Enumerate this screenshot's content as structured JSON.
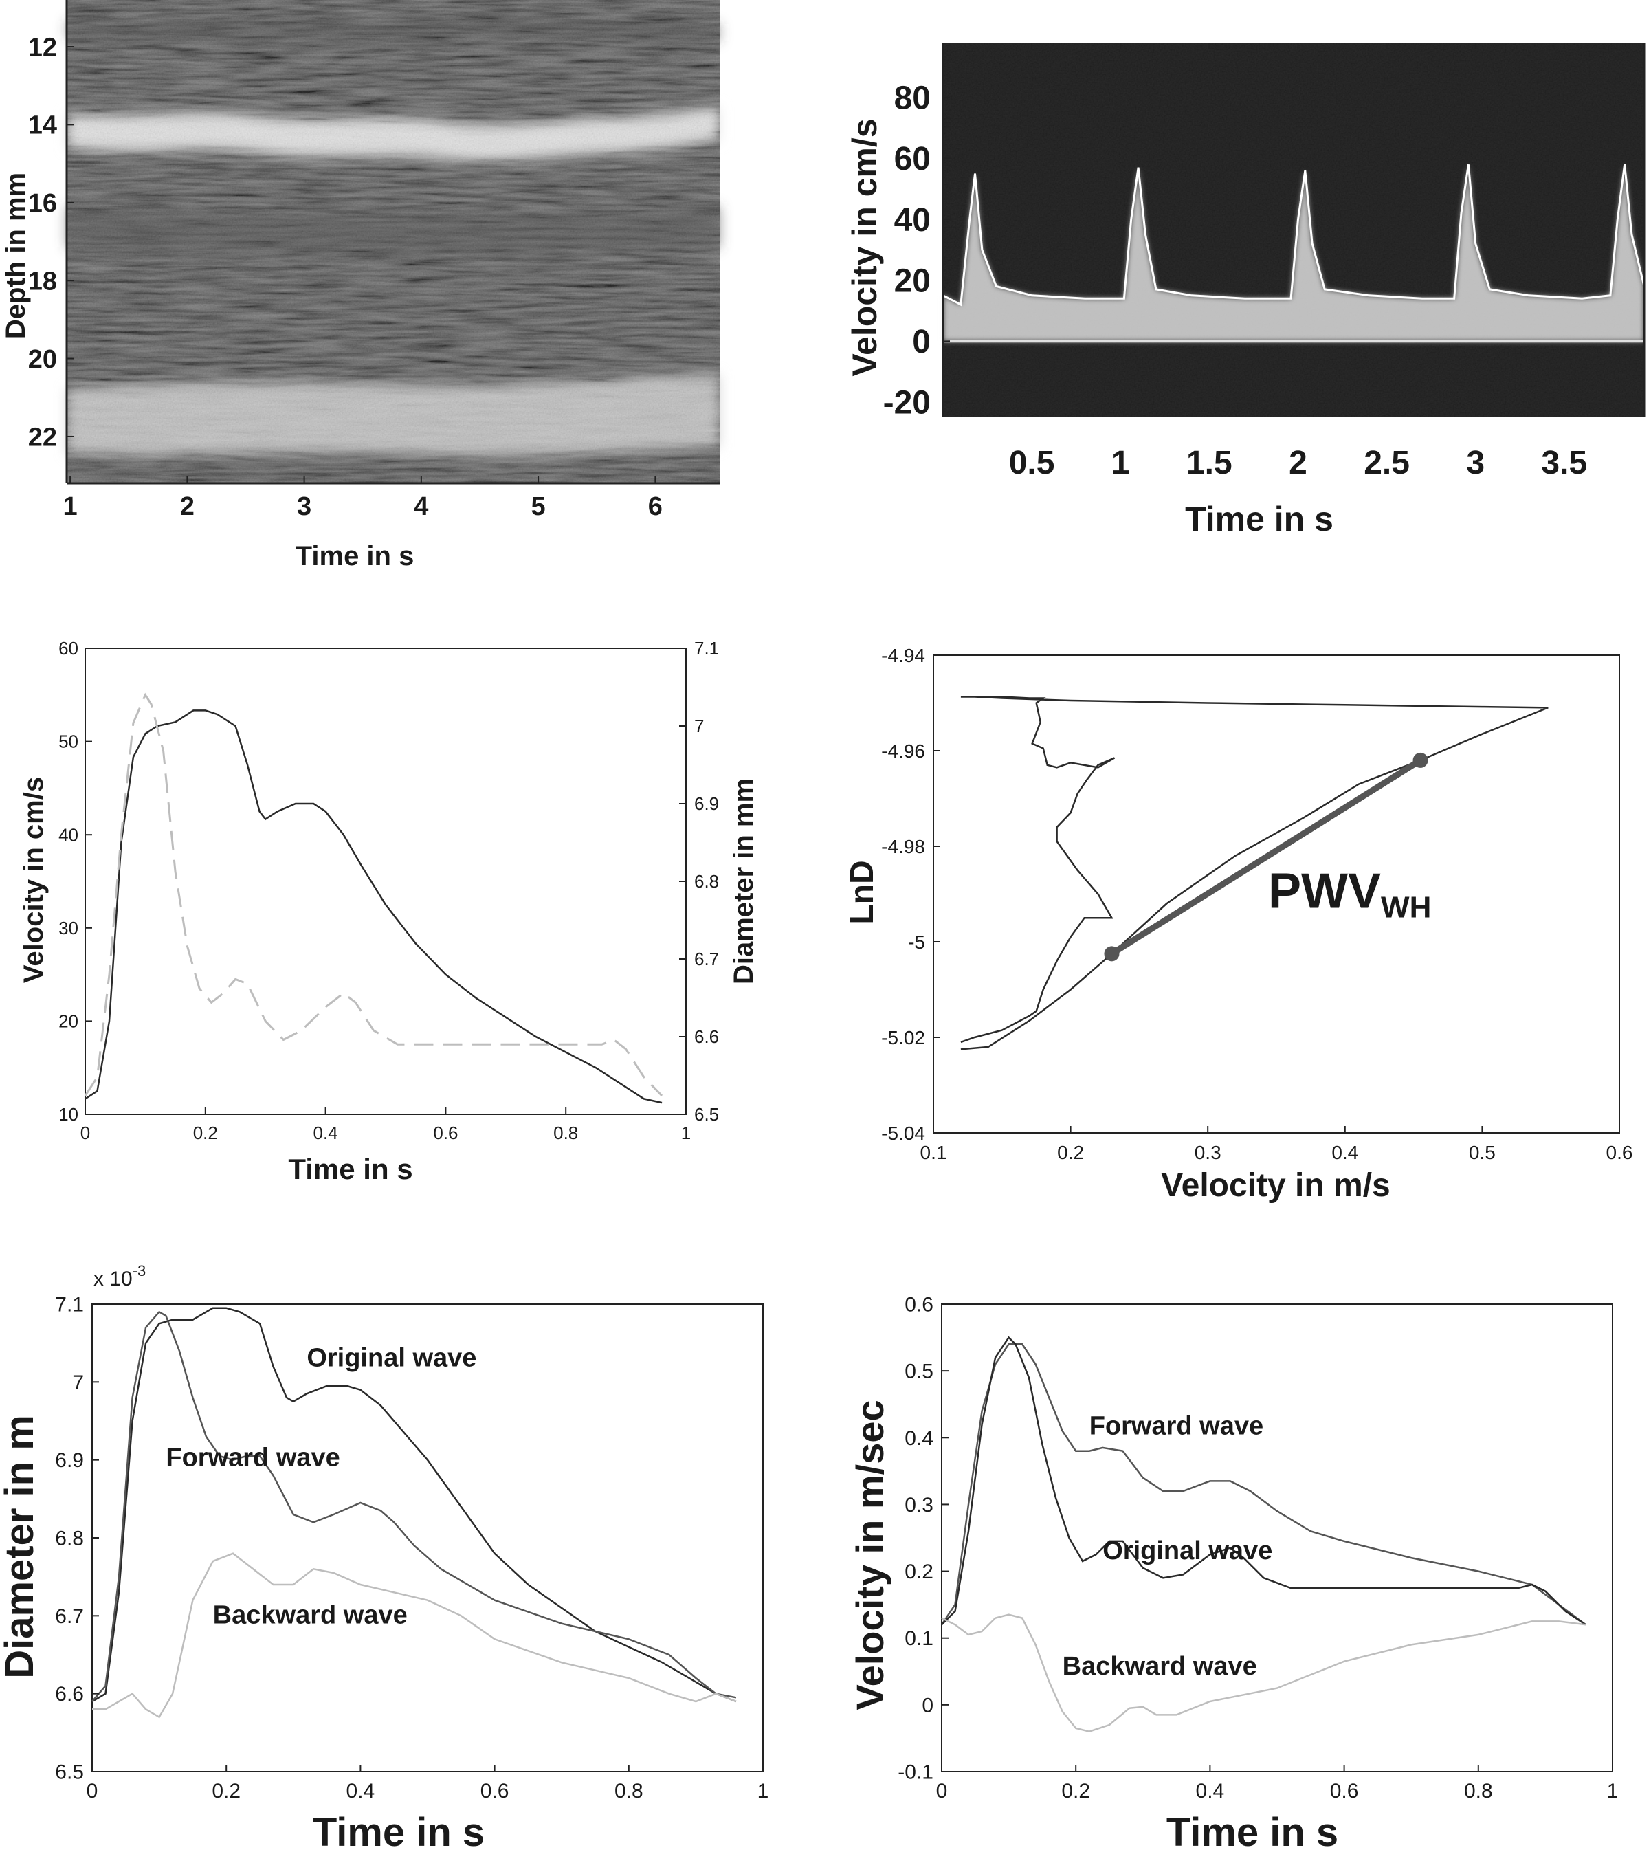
{
  "chart_data": [
    {
      "panel": "a",
      "type": "heatmap",
      "xlabel": "Time in s",
      "ylabel": "Depth in mm",
      "xticks": [
        1,
        2,
        3,
        4,
        5,
        6
      ],
      "yticks": [
        12,
        14,
        16,
        18,
        20,
        22
      ],
      "xlim": [
        0.97,
        6.55
      ],
      "ylim": [
        23.2,
        10.8
      ],
      "grid": false
    },
    {
      "panel": "b",
      "type": "heatmap",
      "xlabel": "Time in s",
      "ylabel": "Velocity in cm/s",
      "xticks": [
        0.5,
        1,
        1.5,
        2,
        2.5,
        3,
        3.5
      ],
      "xtick_labels": [
        "0.5",
        "1",
        "1.5",
        "2",
        "2.5",
        "3",
        "3.5"
      ],
      "yticks": [
        -20,
        0,
        20,
        40,
        60,
        80
      ],
      "xlim": [
        0,
        3.95
      ],
      "ylim": [
        -25,
        98
      ],
      "grid": false,
      "series": [
        {
          "x": [
            0,
            0.1,
            0.15,
            0.18,
            0.22,
            0.3,
            0.5,
            0.8,
            1.02,
            1.06,
            1.1,
            1.14,
            1.2,
            1.4,
            1.7,
            1.96,
            2.0,
            2.04,
            2.08,
            2.15,
            2.4,
            2.7,
            2.88,
            2.92,
            2.96,
            3.0,
            3.08,
            3.3,
            3.6,
            3.76,
            3.8,
            3.84,
            3.88,
            3.95
          ],
          "y": [
            15,
            12,
            40,
            55,
            30,
            18,
            15,
            14,
            14,
            40,
            57,
            35,
            17,
            15,
            14,
            14,
            40,
            56,
            32,
            17,
            15,
            14,
            14,
            42,
            58,
            32,
            17,
            15,
            14,
            15,
            40,
            58,
            35,
            18
          ]
        }
      ]
    },
    {
      "panel": "c",
      "type": "line",
      "xlabel": "Time in s",
      "ylabel": "Velocity in cm/s",
      "ylabel_right": "Diameter in mm",
      "xlim": [
        0,
        1
      ],
      "ylim": [
        10,
        60
      ],
      "ylim_right": [
        6.5,
        7.1
      ],
      "xticks": [
        0,
        0.2,
        0.4,
        0.6,
        0.8,
        1
      ],
      "yticks": [
        10,
        20,
        30,
        40,
        50,
        60
      ],
      "yticks_right": [
        6.5,
        6.6,
        6.7,
        6.8,
        6.9,
        7,
        7.1
      ],
      "grid": false,
      "series": [
        {
          "axis": "right",
          "x": [
            0,
            0.02,
            0.04,
            0.06,
            0.08,
            0.1,
            0.12,
            0.15,
            0.18,
            0.2,
            0.22,
            0.25,
            0.27,
            0.29,
            0.3,
            0.32,
            0.35,
            0.38,
            0.4,
            0.43,
            0.46,
            0.5,
            0.55,
            0.6,
            0.65,
            0.7,
            0.75,
            0.8,
            0.85,
            0.9,
            0.93,
            0.96
          ],
          "y": [
            6.52,
            6.53,
            6.62,
            6.85,
            6.96,
            6.99,
            7.0,
            7.005,
            7.02,
            7.02,
            7.015,
            7.0,
            6.95,
            6.89,
            6.88,
            6.89,
            6.9,
            6.9,
            6.89,
            6.86,
            6.82,
            6.77,
            6.72,
            6.68,
            6.65,
            6.625,
            6.6,
            6.58,
            6.56,
            6.535,
            6.52,
            6.515
          ]
        },
        {
          "axis": "left",
          "x": [
            0,
            0.02,
            0.04,
            0.06,
            0.08,
            0.1,
            0.11,
            0.13,
            0.15,
            0.17,
            0.19,
            0.21,
            0.23,
            0.25,
            0.27,
            0.3,
            0.33,
            0.36,
            0.4,
            0.43,
            0.45,
            0.48,
            0.52,
            0.6,
            0.7,
            0.8,
            0.86,
            0.88,
            0.9,
            0.93,
            0.96
          ],
          "y": [
            12,
            14,
            25,
            40,
            52,
            55,
            54,
            49,
            36,
            28,
            23.5,
            22,
            23,
            24.5,
            24,
            20,
            18,
            19,
            21.5,
            23,
            22,
            19,
            17.5,
            17.5,
            17.5,
            17.5,
            17.5,
            18,
            17,
            14,
            12
          ]
        }
      ]
    },
    {
      "panel": "d",
      "type": "line",
      "xlabel": "Velocity in m/s",
      "ylabel": "LnD",
      "xlim": [
        0.1,
        0.6
      ],
      "ylim": [
        -5.04,
        -4.94
      ],
      "xticks": [
        0.1,
        0.2,
        0.3,
        0.4,
        0.5,
        0.6
      ],
      "yticks": [
        -5.04,
        -5.02,
        -5.0,
        -4.98,
        -4.96,
        -4.94
      ],
      "ytick_labels": [
        "-5.04",
        "-5.02",
        "-5",
        "-4.98",
        "-4.96",
        "-4.94"
      ],
      "grid": false,
      "annotation": {
        "text": "PWV",
        "subscript": "WH",
        "x": 0.34,
        "y": -4.99
      },
      "fit_points": [
        {
          "x": 0.23,
          "y": -5.0025
        },
        {
          "x": 0.455,
          "y": -4.962
        }
      ],
      "series": [
        {
          "x": [
            0.12,
            0.14,
            0.17,
            0.2,
            0.23,
            0.27,
            0.32,
            0.37,
            0.41,
            0.455,
            0.5,
            0.548,
            0.5,
            0.4,
            0.3,
            0.2,
            0.15,
            0.13,
            0.12,
            0.135,
            0.15,
            0.17,
            0.18,
            0.175,
            0.178,
            0.172,
            0.18,
            0.183,
            0.19,
            0.2,
            0.22,
            0.232,
            0.22,
            0.212,
            0.205,
            0.2,
            0.19,
            0.19,
            0.205,
            0.22,
            0.23,
            0.21,
            0.2,
            0.19,
            0.18,
            0.175,
            0.17,
            0.15,
            0.13,
            0.12
          ],
          "y": [
            -5.0225,
            -5.022,
            -5.0165,
            -5.01,
            -5.0025,
            -4.992,
            -4.982,
            -4.974,
            -4.967,
            -4.962,
            -4.9565,
            -4.951,
            -4.9508,
            -4.9504,
            -4.95,
            -4.9495,
            -4.949,
            -4.9487,
            -4.9487,
            -4.9487,
            -4.9487,
            -4.949,
            -4.949,
            -4.95,
            -4.954,
            -4.9585,
            -4.9595,
            -4.963,
            -4.9635,
            -4.9625,
            -4.9635,
            -4.9615,
            -4.963,
            -4.966,
            -4.969,
            -4.973,
            -4.976,
            -4.979,
            -4.985,
            -4.99,
            -4.995,
            -4.995,
            -4.999,
            -5.004,
            -5.01,
            -5.0145,
            -5.0155,
            -5.0185,
            -5.02,
            -5.021
          ]
        },
        {
          "x": [
            0.23,
            0.27,
            0.32,
            0.37,
            0.41,
            0.455
          ],
          "y": [
            -5.0025,
            -4.9915,
            -4.98,
            -4.9725,
            -4.9665,
            -4.962
          ]
        }
      ]
    },
    {
      "panel": "e",
      "type": "line",
      "xlabel": "Time in s",
      "ylabel": "Diameter in m",
      "multiplier": "x 10",
      "multiplier_exponent": "-3",
      "xlim": [
        0,
        1
      ],
      "ylim": [
        6.5,
        7.1
      ],
      "xticks": [
        0,
        0.2,
        0.4,
        0.6,
        0.8,
        1
      ],
      "yticks": [
        6.5,
        6.6,
        6.7,
        6.8,
        6.9,
        7,
        7.1
      ],
      "grid": false,
      "series": [
        {
          "name": "Original wave",
          "label_pos": {
            "x": 0.32,
            "y": 7.02
          },
          "x": [
            0,
            0.02,
            0.04,
            0.06,
            0.08,
            0.1,
            0.12,
            0.15,
            0.18,
            0.2,
            0.22,
            0.25,
            0.27,
            0.29,
            0.3,
            0.32,
            0.35,
            0.38,
            0.4,
            0.43,
            0.46,
            0.5,
            0.55,
            0.6,
            0.65,
            0.7,
            0.75,
            0.8,
            0.85,
            0.9,
            0.93,
            0.96
          ],
          "y": [
            6.59,
            6.6,
            6.73,
            6.95,
            7.05,
            7.075,
            7.08,
            7.08,
            7.095,
            7.095,
            7.09,
            7.075,
            7.02,
            6.98,
            6.975,
            6.985,
            6.995,
            6.995,
            6.99,
            6.97,
            6.94,
            6.9,
            6.84,
            6.78,
            6.74,
            6.71,
            6.68,
            6.66,
            6.64,
            6.615,
            6.6,
            6.59
          ]
        },
        {
          "name": "Forward wave",
          "label_pos": {
            "x": 0.11,
            "y": 6.892
          },
          "x": [
            0,
            0.02,
            0.04,
            0.06,
            0.08,
            0.1,
            0.11,
            0.13,
            0.15,
            0.17,
            0.19,
            0.21,
            0.23,
            0.25,
            0.27,
            0.3,
            0.33,
            0.36,
            0.4,
            0.43,
            0.45,
            0.48,
            0.52,
            0.6,
            0.7,
            0.8,
            0.86,
            0.9,
            0.93,
            0.96
          ],
          "y": [
            6.59,
            6.61,
            6.75,
            6.98,
            7.07,
            7.09,
            7.085,
            7.04,
            6.98,
            6.93,
            6.905,
            6.9,
            6.905,
            6.905,
            6.88,
            6.83,
            6.82,
            6.83,
            6.845,
            6.835,
            6.82,
            6.79,
            6.76,
            6.72,
            6.69,
            6.67,
            6.65,
            6.62,
            6.6,
            6.595
          ]
        },
        {
          "name": "Backward wave",
          "label_pos": {
            "x": 0.18,
            "y": 6.69
          },
          "x": [
            0,
            0.02,
            0.04,
            0.06,
            0.08,
            0.1,
            0.12,
            0.15,
            0.18,
            0.21,
            0.24,
            0.27,
            0.3,
            0.33,
            0.36,
            0.4,
            0.45,
            0.5,
            0.55,
            0.6,
            0.7,
            0.8,
            0.86,
            0.9,
            0.93,
            0.96
          ],
          "y": [
            6.58,
            6.58,
            6.59,
            6.6,
            6.58,
            6.57,
            6.6,
            6.72,
            6.77,
            6.78,
            6.76,
            6.74,
            6.74,
            6.76,
            6.755,
            6.74,
            6.73,
            6.72,
            6.7,
            6.67,
            6.64,
            6.62,
            6.6,
            6.59,
            6.6,
            6.59
          ]
        }
      ]
    },
    {
      "panel": "f",
      "type": "line",
      "xlabel": "Time in s",
      "ylabel": "Velocity in m/sec",
      "xlim": [
        0,
        1
      ],
      "ylim": [
        -0.1,
        0.6
      ],
      "xticks": [
        0,
        0.2,
        0.4,
        0.6,
        0.8,
        1
      ],
      "yticks": [
        -0.1,
        0,
        0.1,
        0.2,
        0.3,
        0.4,
        0.5,
        0.6
      ],
      "grid": false,
      "series": [
        {
          "name": "Forward wave",
          "label_pos": {
            "x": 0.22,
            "y": 0.405
          },
          "x": [
            0,
            0.02,
            0.04,
            0.06,
            0.08,
            0.1,
            0.12,
            0.14,
            0.16,
            0.18,
            0.2,
            0.22,
            0.24,
            0.27,
            0.3,
            0.33,
            0.36,
            0.4,
            0.43,
            0.46,
            0.5,
            0.55,
            0.6,
            0.7,
            0.8,
            0.88,
            0.92,
            0.96
          ],
          "y": [
            0.12,
            0.15,
            0.3,
            0.44,
            0.51,
            0.54,
            0.54,
            0.51,
            0.46,
            0.41,
            0.38,
            0.38,
            0.385,
            0.38,
            0.34,
            0.32,
            0.32,
            0.335,
            0.335,
            0.32,
            0.29,
            0.26,
            0.245,
            0.22,
            0.2,
            0.18,
            0.15,
            0.12
          ]
        },
        {
          "name": "Original wave",
          "label_pos": {
            "x": 0.24,
            "y": 0.218
          },
          "x": [
            0,
            0.02,
            0.04,
            0.06,
            0.08,
            0.1,
            0.11,
            0.13,
            0.15,
            0.17,
            0.19,
            0.21,
            0.23,
            0.25,
            0.27,
            0.3,
            0.33,
            0.36,
            0.4,
            0.43,
            0.45,
            0.48,
            0.52,
            0.6,
            0.7,
            0.8,
            0.86,
            0.88,
            0.9,
            0.93,
            0.96
          ],
          "y": [
            0.12,
            0.14,
            0.26,
            0.42,
            0.52,
            0.55,
            0.54,
            0.49,
            0.39,
            0.31,
            0.25,
            0.215,
            0.225,
            0.245,
            0.245,
            0.205,
            0.19,
            0.195,
            0.225,
            0.235,
            0.22,
            0.19,
            0.175,
            0.175,
            0.175,
            0.175,
            0.175,
            0.18,
            0.17,
            0.14,
            0.12
          ]
        },
        {
          "name": "Backward wave",
          "label_pos": {
            "x": 0.18,
            "y": 0.045
          },
          "x": [
            0,
            0.02,
            0.04,
            0.06,
            0.08,
            0.1,
            0.12,
            0.14,
            0.16,
            0.18,
            0.2,
            0.22,
            0.25,
            0.28,
            0.3,
            0.32,
            0.35,
            0.4,
            0.45,
            0.5,
            0.55,
            0.6,
            0.7,
            0.8,
            0.88,
            0.92,
            0.96
          ],
          "y": [
            0.13,
            0.12,
            0.105,
            0.11,
            0.13,
            0.135,
            0.13,
            0.09,
            0.035,
            -0.01,
            -0.035,
            -0.04,
            -0.03,
            -0.005,
            -0.003,
            -0.015,
            -0.015,
            0.005,
            0.015,
            0.025,
            0.045,
            0.065,
            0.09,
            0.105,
            0.125,
            0.125,
            0.12
          ]
        }
      ]
    }
  ],
  "palette": {
    "dark": "#2a2a2a",
    "mid": "#555555",
    "light": "#bdbdbd",
    "image_bg": "#141414"
  }
}
